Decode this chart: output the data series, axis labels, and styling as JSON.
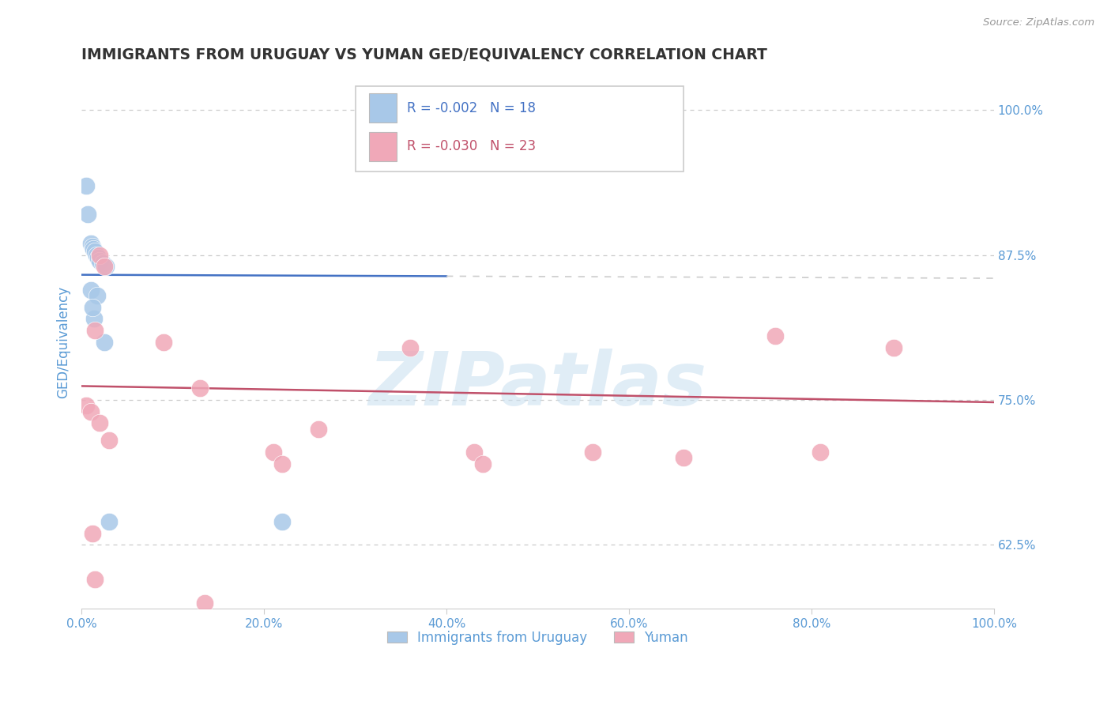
{
  "title": "IMMIGRANTS FROM URUGUAY VS YUMAN GED/EQUIVALENCY CORRELATION CHART",
  "source": "Source: ZipAtlas.com",
  "ylabel": "GED/Equivalency",
  "xlim": [
    0.0,
    100.0
  ],
  "ylim": [
    57.0,
    103.0
  ],
  "yticks": [
    62.5,
    75.0,
    87.5,
    100.0
  ],
  "xticks": [
    0.0,
    20.0,
    40.0,
    60.0,
    80.0,
    100.0
  ],
  "blue_label": "Immigrants from Uruguay",
  "pink_label": "Yuman",
  "blue_R": -0.002,
  "blue_N": 18,
  "pink_R": -0.03,
  "pink_N": 23,
  "blue_color": "#a8c8e8",
  "pink_color": "#f0a8b8",
  "blue_line_color": "#4472c4",
  "pink_line_color": "#c0506a",
  "blue_line_y0": 85.8,
  "blue_line_y1": 85.5,
  "blue_solid_end_x": 40.0,
  "pink_line_y0": 76.2,
  "pink_line_y1": 74.8,
  "blue_points": [
    [
      0.5,
      93.5
    ],
    [
      0.7,
      91.0
    ],
    [
      1.0,
      88.5
    ],
    [
      1.2,
      88.2
    ],
    [
      1.3,
      88.0
    ],
    [
      1.5,
      87.8
    ],
    [
      1.6,
      87.5
    ],
    [
      1.8,
      87.3
    ],
    [
      2.0,
      87.0
    ],
    [
      2.3,
      86.8
    ],
    [
      2.7,
      86.5
    ],
    [
      1.0,
      84.5
    ],
    [
      1.7,
      84.0
    ],
    [
      1.4,
      82.0
    ],
    [
      2.5,
      80.0
    ],
    [
      1.2,
      83.0
    ],
    [
      3.0,
      64.5
    ],
    [
      22.0,
      64.5
    ]
  ],
  "pink_points": [
    [
      0.5,
      74.5
    ],
    [
      1.0,
      74.0
    ],
    [
      1.5,
      81.0
    ],
    [
      2.0,
      73.0
    ],
    [
      2.0,
      87.5
    ],
    [
      2.5,
      86.5
    ],
    [
      1.2,
      63.5
    ],
    [
      3.0,
      71.5
    ],
    [
      9.0,
      80.0
    ],
    [
      13.0,
      76.0
    ],
    [
      21.0,
      70.5
    ],
    [
      22.0,
      69.5
    ],
    [
      26.0,
      72.5
    ],
    [
      36.0,
      79.5
    ],
    [
      43.0,
      70.5
    ],
    [
      44.0,
      69.5
    ],
    [
      56.0,
      70.5
    ],
    [
      66.0,
      70.0
    ],
    [
      76.0,
      80.5
    ],
    [
      81.0,
      70.5
    ],
    [
      89.0,
      79.5
    ],
    [
      1.5,
      59.5
    ],
    [
      13.5,
      57.5
    ]
  ],
  "watermark_text": "ZIPatlas",
  "watermark_color": "#c8dff0",
  "background_color": "#ffffff",
  "grid_color": "#cccccc",
  "title_color": "#333333",
  "axis_label_color": "#5b9bd5",
  "tick_label_color": "#5b9bd5"
}
